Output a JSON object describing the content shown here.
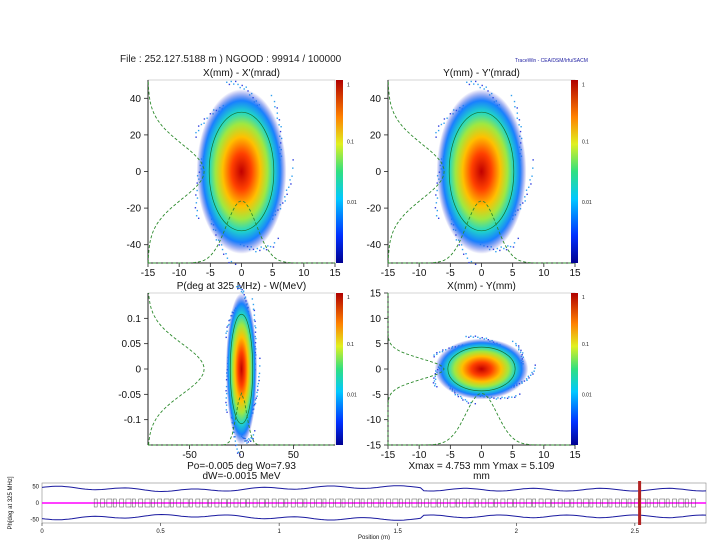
{
  "header": {
    "file_line": "File : 252.127.5188 m )    NGOOD : 99914 / 100000",
    "brand": "TraceWin - CEA/DSM/Irfu/SACM"
  },
  "colors": {
    "axis": "#222222",
    "profile": "#2e8b2e",
    "envelope": "#1a1aa0",
    "beamline": "#ff00ff",
    "marker": "#b22222",
    "element": "#555555"
  },
  "chart_data": [
    {
      "type": "heatmap",
      "title": "X(mm) - X'(mrad)",
      "xlim": [
        -15,
        15
      ],
      "ylim": [
        -50,
        50
      ],
      "xticks": [
        "-15",
        "-10",
        "-5",
        "0",
        "5",
        "10",
        "15"
      ],
      "yticks": [
        "40",
        "20",
        "0",
        "-20",
        "-40"
      ],
      "ytick_values": [
        40,
        20,
        0,
        -20,
        -40
      ],
      "center": [
        0,
        0
      ],
      "sigma": [
        2.4,
        15
      ],
      "colorbar_ticks": [
        "1",
        "0.1",
        "0.01"
      ]
    },
    {
      "type": "heatmap",
      "title": "Y(mm) - Y'(mrad)",
      "xlim": [
        -15,
        15
      ],
      "ylim": [
        -50,
        50
      ],
      "xticks": [
        "-15",
        "-10",
        "-5",
        "0",
        "5",
        "10",
        "15"
      ],
      "yticks": [
        "40",
        "20",
        "0",
        "-20",
        "-40"
      ],
      "ytick_values": [
        40,
        20,
        0,
        -20,
        -40
      ],
      "center": [
        0,
        0
      ],
      "sigma": [
        2.4,
        15
      ],
      "colorbar_ticks": [
        "1",
        "0.1",
        "0.01"
      ]
    },
    {
      "type": "heatmap",
      "title": "P(deg at 325 MHz) - W(MeV)",
      "xlim": [
        -90,
        90
      ],
      "ylim": [
        -0.15,
        0.15
      ],
      "xticks": [
        "-50",
        "0",
        "50"
      ],
      "xtick_values": [
        -50,
        0,
        50
      ],
      "yticks": [
        "0.1",
        "0.05",
        "0",
        "-0.05",
        "-0.1"
      ],
      "ytick_values": [
        0.1,
        0.05,
        0,
        -0.05,
        -0.1
      ],
      "center": [
        0,
        0
      ],
      "sigma": [
        5,
        0.05
      ],
      "colorbar_ticks": [
        "1",
        "0.1",
        "0.01"
      ],
      "footer": [
        "Po=-0.005 deg  Wo=7.93",
        "dW=-0.0015 MeV"
      ]
    },
    {
      "type": "heatmap",
      "title": "X(mm) - Y(mm)",
      "xlim": [
        -15,
        15
      ],
      "ylim": [
        -15,
        15
      ],
      "xticks": [
        "-15",
        "-10",
        "-5",
        "0",
        "5",
        "10",
        "15"
      ],
      "yticks": [
        "15",
        "10",
        "5",
        "0",
        "-5",
        "-10",
        "-15"
      ],
      "ytick_values": [
        15,
        10,
        5,
        0,
        -5,
        -10,
        -15
      ],
      "center": [
        0,
        0
      ],
      "sigma": [
        2.5,
        2.0
      ],
      "colorbar_ticks": [
        "1",
        "0.1",
        "0.01"
      ],
      "footer": [
        "Xmax = 4.753 mm  Ymax = 5.109",
        "mm"
      ]
    },
    {
      "type": "line",
      "title": "",
      "xlabel": "Position (m)",
      "ylabel": "Ph[deg at 325 MHz]",
      "xlim": [
        0,
        2.8
      ],
      "xticks": [
        "0",
        "0.5",
        "1",
        "1.5",
        "2",
        "2.5"
      ],
      "xtick_values": [
        0,
        0.5,
        1,
        1.5,
        2,
        2.5
      ],
      "yticks": [
        "50",
        "0",
        "-50"
      ],
      "ytick_values": [
        50,
        0,
        -50
      ],
      "ylim": [
        -60,
        60
      ],
      "marker_position": 2.52
    }
  ]
}
